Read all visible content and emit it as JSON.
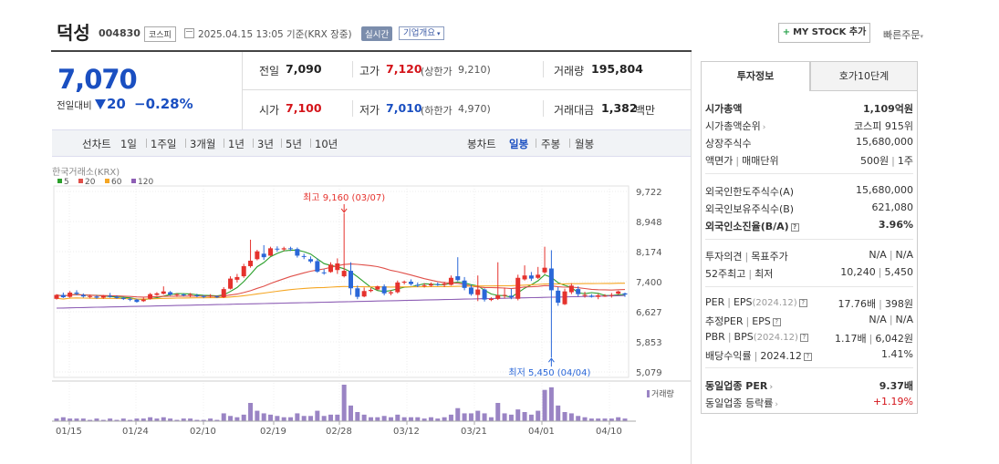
{
  "header": {
    "stock_name": "덕성",
    "stock_code": "004830",
    "market": "코스피",
    "date_text": "2025.04.15 13:05 기준(KRX 장중)",
    "realtime": "실시간",
    "company_overview": "기업개요",
    "mystock_label": "MY STOCK 추가",
    "quick_order": "빠른주문"
  },
  "price": {
    "current": "7,070",
    "prev_label": "전일대비",
    "change": "20",
    "change_pct": "−0.28%"
  },
  "quote": {
    "prev_close_label": "전일",
    "prev_close": "7,090",
    "high_label": "고가",
    "high": "7,120",
    "upper_limit_label": "(상한가",
    "upper_limit": "9,210)",
    "volume_label": "거래량",
    "volume": "195,804",
    "open_label": "시가",
    "open": "7,100",
    "low_label": "저가",
    "low": "7,010",
    "lower_limit_label": "(하한가",
    "lower_limit": "4,970)",
    "amount_label": "거래대금",
    "amount": "1,382",
    "amount_unit": "백만"
  },
  "period_bar": {
    "line_label": "선차트",
    "line_periods": [
      "1일",
      "1주일",
      "3개월",
      "1년",
      "3년",
      "5년",
      "10년"
    ],
    "candle_label": "봉차트",
    "candle_periods": [
      "일봉",
      "주봉",
      "월봉"
    ],
    "active": "일봉"
  },
  "chart_data": {
    "type": "candlestick",
    "source_label": "한국거래소(KRX)",
    "moving_averages": [
      {
        "name": "5",
        "color": "#2ca02c"
      },
      {
        "name": "20",
        "color": "#e0504a"
      },
      {
        "name": "60",
        "color": "#f5a623"
      },
      {
        "name": "120",
        "color": "#8e5fb5"
      }
    ],
    "y_ticks": [
      "9,722",
      "8,948",
      "8,174",
      "7,400",
      "6,627",
      "5,853",
      "5,079"
    ],
    "ylim": [
      5079,
      9722
    ],
    "x_ticks": [
      "01/15",
      "01/24",
      "02/10",
      "02/19",
      "02/28",
      "03/12",
      "03/21",
      "04/01",
      "04/10"
    ],
    "max_annotation": "최고 9,160 (03/07)",
    "min_annotation": "최저 5,450 (04/04)",
    "volume_label": "거래량",
    "up_color": "#e5322d",
    "down_color": "#2a67d8"
  },
  "right_panel": {
    "tabs": [
      "투자정보",
      "호가10단계"
    ],
    "rows": [
      {
        "label": "시가총액",
        "value": "1,109억원",
        "bold": true
      },
      {
        "label": "시가총액순위",
        "value": "코스피 915위",
        "arrow": true
      },
      {
        "label": "상장주식수",
        "value": "15,680,000"
      },
      {
        "label": "액면가",
        "label2": "매매단위",
        "value": "500원",
        "value2": "1주"
      },
      {
        "label": "외국인한도주식수(A)",
        "value": "15,680,000"
      },
      {
        "label": "외국인보유주식수(B)",
        "value": "621,080"
      },
      {
        "label": "외국인소진율(B/A)",
        "value": "3.96%",
        "bold": true,
        "icon": true
      },
      {
        "label": "투자의견",
        "label2": "목표주가",
        "value": "N/A",
        "value2": "N/A"
      },
      {
        "label": "52주최고",
        "label2": "최저",
        "value": "10,240",
        "value2": "5,450"
      },
      {
        "label": "PER",
        "label2": "EPS",
        "label3": "(2024.12)",
        "value": "17.76배",
        "value2": "398원",
        "icon": true
      },
      {
        "label": "추정PER",
        "label2": "EPS",
        "value": "N/A",
        "value2": "N/A",
        "icon": true
      },
      {
        "label": "PBR",
        "label2": "BPS",
        "label3": "(2024.12)",
        "value": "1.17배",
        "value2": "6,042원",
        "icon": true
      },
      {
        "label": "배당수익률",
        "label2": "2024.12",
        "value": "1.41%",
        "icon": true
      },
      {
        "label": "동일업종 PER",
        "value": "9.37배",
        "bold": true,
        "arrow": true
      },
      {
        "label": "동일업종 등락률",
        "value": "+1.19%",
        "arrow": true,
        "up": true
      }
    ]
  }
}
